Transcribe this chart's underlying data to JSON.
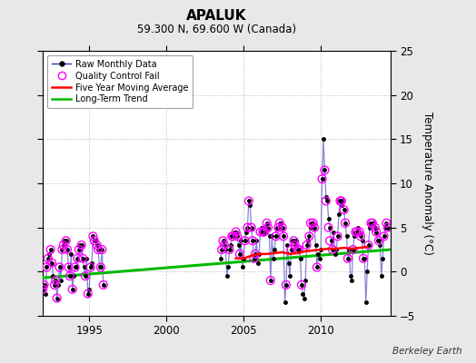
{
  "title": "APALUK",
  "subtitle": "59.300 N, 69.600 W (Canada)",
  "ylabel": "Temperature Anomaly (°C)",
  "credit": "Berkeley Earth",
  "xlim": [
    1992.0,
    2014.5
  ],
  "ylim": [
    -5,
    25
  ],
  "yticks": [
    -5,
    0,
    5,
    10,
    15,
    20,
    25
  ],
  "background_color": "#e8e8e8",
  "plot_bg_color": "#ffffff",
  "raw_line_color": "#3333bb",
  "raw_line_alpha": 0.6,
  "raw_dot_color": "#000000",
  "qc_fail_color": "#ff00ff",
  "moving_avg_color": "#ff0000",
  "trend_color": "#00bb00",
  "raw_monthly_x": [
    1992.0,
    1992.083,
    1992.167,
    1992.25,
    1992.333,
    1992.417,
    1992.5,
    1992.583,
    1992.667,
    1992.75,
    1992.833,
    1992.917,
    1993.0,
    1993.083,
    1993.167,
    1993.25,
    1993.333,
    1993.417,
    1993.5,
    1993.583,
    1993.667,
    1993.75,
    1993.833,
    1993.917,
    1994.0,
    1994.083,
    1994.167,
    1994.25,
    1994.333,
    1994.417,
    1994.5,
    1994.583,
    1994.667,
    1994.75,
    1994.833,
    1994.917,
    1995.0,
    1995.083,
    1995.167,
    1995.25,
    1995.333,
    1995.417,
    1995.5,
    1995.583,
    1995.667,
    1995.75,
    1995.833,
    1995.917,
    2003.5,
    2003.583,
    2003.667,
    2003.75,
    2003.833,
    2003.917,
    2004.0,
    2004.083,
    2004.167,
    2004.25,
    2004.333,
    2004.417,
    2004.5,
    2004.583,
    2004.667,
    2004.75,
    2004.833,
    2004.917,
    2005.0,
    2005.083,
    2005.167,
    2005.25,
    2005.333,
    2005.417,
    2005.5,
    2005.583,
    2005.667,
    2005.75,
    2005.833,
    2005.917,
    2006.0,
    2006.083,
    2006.167,
    2006.25,
    2006.333,
    2006.417,
    2006.5,
    2006.583,
    2006.667,
    2006.75,
    2006.833,
    2006.917,
    2007.0,
    2007.083,
    2007.167,
    2007.25,
    2007.333,
    2007.417,
    2007.5,
    2007.583,
    2007.667,
    2007.75,
    2007.833,
    2007.917,
    2008.0,
    2008.083,
    2008.167,
    2008.25,
    2008.333,
    2008.417,
    2008.5,
    2008.583,
    2008.667,
    2008.75,
    2008.833,
    2008.917,
    2009.0,
    2009.083,
    2009.167,
    2009.25,
    2009.333,
    2009.417,
    2009.5,
    2009.583,
    2009.667,
    2009.75,
    2009.833,
    2009.917,
    2010.0,
    2010.083,
    2010.167,
    2010.25,
    2010.333,
    2010.417,
    2010.5,
    2010.583,
    2010.667,
    2010.75,
    2010.833,
    2010.917,
    2011.0,
    2011.083,
    2011.167,
    2011.25,
    2011.333,
    2011.417,
    2011.5,
    2011.583,
    2011.667,
    2011.75,
    2011.833,
    2011.917,
    2012.0,
    2012.083,
    2012.167,
    2012.25,
    2012.333,
    2012.417,
    2012.5,
    2012.583,
    2012.667,
    2012.75,
    2012.833,
    2012.917,
    2013.0,
    2013.083,
    2013.167,
    2013.25,
    2013.333,
    2013.417,
    2013.5,
    2013.583,
    2013.667,
    2013.75,
    2013.833,
    2013.917,
    2014.0,
    2014.083,
    2014.167,
    2014.25,
    2014.333
  ],
  "raw_monthly_y": [
    -2.0,
    -1.5,
    -2.5,
    0.5,
    1.5,
    2.0,
    2.5,
    1.0,
    -0.5,
    -1.5,
    -1.0,
    -3.0,
    -1.5,
    0.5,
    -1.0,
    2.5,
    3.0,
    3.5,
    3.5,
    2.5,
    0.5,
    -0.5,
    2.0,
    -2.0,
    -0.5,
    0.5,
    0.5,
    1.5,
    2.5,
    3.0,
    3.0,
    1.5,
    0.5,
    -0.5,
    1.5,
    -2.5,
    -2.0,
    0.5,
    1.0,
    4.0,
    3.5,
    3.5,
    3.0,
    2.5,
    0.5,
    0.5,
    2.5,
    -1.5,
    1.5,
    2.5,
    3.5,
    3.0,
    2.5,
    -0.5,
    0.5,
    2.5,
    3.0,
    4.0,
    4.0,
    4.5,
    4.5,
    4.0,
    3.0,
    2.0,
    3.5,
    0.5,
    1.5,
    3.5,
    4.5,
    5.0,
    8.0,
    7.5,
    5.0,
    3.5,
    1.5,
    2.0,
    3.5,
    1.0,
    2.0,
    4.5,
    5.0,
    4.5,
    4.5,
    5.0,
    5.5,
    5.0,
    4.0,
    -1.0,
    4.0,
    1.5,
    2.5,
    4.0,
    5.0,
    5.0,
    5.5,
    5.5,
    5.0,
    4.0,
    -3.5,
    -1.5,
    3.0,
    1.0,
    -0.5,
    2.5,
    3.5,
    3.5,
    3.0,
    3.5,
    2.5,
    2.5,
    1.5,
    -1.5,
    -2.5,
    -3.0,
    -1.0,
    3.0,
    3.5,
    4.0,
    5.0,
    5.5,
    5.5,
    5.0,
    3.0,
    0.5,
    2.0,
    1.5,
    2.5,
    10.5,
    15.0,
    11.5,
    8.5,
    8.0,
    6.0,
    5.0,
    3.5,
    2.5,
    4.5,
    2.0,
    2.5,
    4.0,
    6.5,
    8.0,
    7.5,
    8.0,
    7.0,
    5.5,
    4.0,
    1.5,
    2.5,
    -0.5,
    -1.0,
    2.5,
    4.0,
    4.5,
    4.5,
    5.0,
    4.5,
    4.0,
    3.5,
    1.5,
    1.5,
    -3.5,
    0.0,
    3.0,
    5.0,
    5.5,
    5.5,
    5.5,
    5.0,
    4.5,
    3.5,
    3.5,
    3.0,
    -0.5,
    1.5,
    4.0,
    5.0,
    5.5,
    5.0
  ],
  "qc_fail_x": [
    1992.0,
    1992.083,
    1992.25,
    1992.333,
    1992.5,
    1992.583,
    1992.75,
    1992.833,
    1992.917,
    1993.083,
    1993.25,
    1993.333,
    1993.5,
    1993.583,
    1993.667,
    1993.75,
    1993.917,
    1994.083,
    1994.25,
    1994.333,
    1994.5,
    1994.583,
    1994.75,
    1994.917,
    1995.083,
    1995.25,
    1995.333,
    1995.5,
    1995.583,
    1995.75,
    1995.833,
    1995.917,
    2003.583,
    2003.667,
    2003.75,
    2004.083,
    2004.25,
    2004.333,
    2004.5,
    2004.583,
    2004.75,
    2005.083,
    2005.25,
    2005.333,
    2005.5,
    2005.583,
    2005.667,
    2005.75,
    2006.083,
    2006.25,
    2006.333,
    2006.5,
    2006.583,
    2006.75,
    2007.083,
    2007.25,
    2007.333,
    2007.5,
    2007.583,
    2007.75,
    2008.083,
    2008.25,
    2008.333,
    2008.5,
    2008.583,
    2008.75,
    2009.083,
    2009.25,
    2009.333,
    2009.5,
    2009.583,
    2009.75,
    2010.083,
    2010.25,
    2010.333,
    2010.5,
    2010.583,
    2010.75,
    2011.083,
    2011.25,
    2011.333,
    2011.5,
    2011.583,
    2011.75,
    2012.083,
    2012.25,
    2012.333,
    2012.5,
    2012.583,
    2012.75,
    2013.083,
    2013.25,
    2013.333,
    2013.5,
    2013.583,
    2013.75,
    2014.083,
    2014.25,
    2014.333
  ],
  "qc_fail_y": [
    -2.0,
    -1.5,
    0.5,
    1.5,
    2.5,
    1.0,
    -1.5,
    -1.0,
    -3.0,
    0.5,
    2.5,
    3.0,
    3.5,
    2.5,
    0.5,
    -0.5,
    -2.0,
    0.5,
    1.5,
    2.5,
    3.0,
    1.5,
    -0.5,
    -2.5,
    0.5,
    4.0,
    3.5,
    3.0,
    2.5,
    0.5,
    2.5,
    -1.5,
    2.5,
    3.5,
    3.0,
    2.5,
    4.0,
    4.0,
    4.5,
    4.0,
    2.0,
    3.5,
    5.0,
    8.0,
    5.0,
    3.5,
    1.5,
    2.0,
    4.5,
    4.5,
    4.5,
    5.5,
    5.0,
    -1.0,
    4.0,
    5.0,
    5.5,
    5.0,
    4.0,
    -1.5,
    2.5,
    3.5,
    3.0,
    2.5,
    2.5,
    -1.5,
    3.0,
    4.0,
    5.5,
    5.5,
    5.0,
    0.5,
    10.5,
    11.5,
    8.0,
    5.0,
    3.5,
    2.5,
    4.0,
    8.0,
    8.0,
    7.0,
    5.5,
    1.5,
    2.5,
    4.5,
    4.5,
    4.5,
    4.0,
    1.5,
    3.0,
    5.5,
    5.5,
    5.0,
    4.5,
    3.5,
    4.0,
    5.5,
    5.0
  ],
  "moving_avg_x": [
    2004.5,
    2005.0,
    2005.5,
    2006.0,
    2006.5,
    2007.0,
    2007.5,
    2008.0,
    2008.5,
    2009.0,
    2009.5,
    2010.0,
    2010.5,
    2011.0,
    2011.5,
    2012.0,
    2012.5,
    2013.0
  ],
  "moving_avg_y": [
    1.5,
    1.5,
    1.8,
    2.0,
    2.0,
    2.1,
    2.2,
    2.0,
    2.1,
    2.3,
    2.4,
    2.5,
    2.6,
    2.6,
    2.7,
    2.6,
    2.7,
    2.8
  ],
  "trend_x": [
    1992.0,
    2014.5
  ],
  "trend_y": [
    -0.7,
    2.5
  ],
  "gap_regions": [
    [
      1996.0,
      2003.4
    ]
  ]
}
